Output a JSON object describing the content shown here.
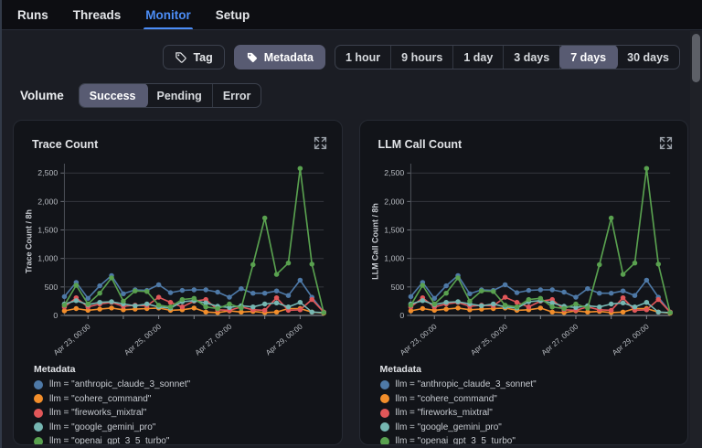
{
  "nav": {
    "tabs": [
      "Runs",
      "Threads",
      "Monitor",
      "Setup"
    ],
    "active_tab": "Monitor"
  },
  "filters": {
    "tag_label": "Tag",
    "metadata_label": "Metadata",
    "selected_filter": "Metadata",
    "time_ranges": [
      "1 hour",
      "9 hours",
      "1 day",
      "3 days",
      "7 days",
      "30 days"
    ],
    "selected_range": "7 days"
  },
  "volume": {
    "label": "Volume",
    "options": [
      "Success",
      "Pending",
      "Error"
    ],
    "selected": "Success"
  },
  "panels": [
    {
      "title": "Trace Count"
    },
    {
      "title": "LLM Call Count"
    }
  ],
  "legend": {
    "title": "Metadata",
    "items": [
      {
        "label": "llm = \"anthropic_claude_3_sonnet\"",
        "color": "#4e79a7"
      },
      {
        "label": "llm = \"cohere_command\"",
        "color": "#f28e2b"
      },
      {
        "label": "llm = \"fireworks_mixtral\"",
        "color": "#e15759"
      },
      {
        "label": "llm = \"google_gemini_pro\"",
        "color": "#76b7b2"
      },
      {
        "label": "llm = \"openai_gpt_3_5_turbo\"",
        "color": "#59a14f"
      }
    ]
  },
  "colors": {
    "accent_blue": "#4c8df6",
    "selected_control": "#585b72",
    "panel_bg": "#121419",
    "page_bg": "#1b1d24"
  },
  "chart_data": [
    {
      "type": "line",
      "title": "Trace Count",
      "ylabel": "Trace Count / 8h",
      "xlabel": "",
      "ylim": [
        0,
        2600
      ],
      "yticks": [
        0,
        500,
        1000,
        1500,
        2000,
        2500
      ],
      "grid": true,
      "legend_position": "bottom",
      "bucket": "8h",
      "xtick_labels": [
        "Apr 23, 00:00",
        "Apr 25, 00:00",
        "Apr 27, 00:00",
        "Apr 29, 00:00"
      ],
      "xtick_indices": [
        2,
        8,
        14,
        20
      ],
      "minor_tick_indices": [
        5,
        11,
        17
      ],
      "series": [
        {
          "name": "llm = \"anthropic_claude_3_sonnet\"",
          "color": "#4e79a7",
          "values": [
            330,
            580,
            300,
            520,
            700,
            380,
            450,
            440,
            540,
            400,
            440,
            450,
            450,
            410,
            320,
            470,
            390,
            390,
            430,
            350,
            620,
            320,
            60
          ]
        },
        {
          "name": "llm = \"cohere_command\"",
          "color": "#f28e2b",
          "values": [
            80,
            120,
            90,
            110,
            130,
            100,
            110,
            120,
            130,
            90,
            100,
            130,
            60,
            50,
            80,
            60,
            70,
            50,
            60,
            120,
            120,
            60,
            40
          ]
        },
        {
          "name": "llm = \"fireworks_mixtral\"",
          "color": "#e15759",
          "values": [
            150,
            310,
            150,
            200,
            230,
            160,
            180,
            170,
            320,
            230,
            150,
            250,
            280,
            100,
            90,
            150,
            100,
            90,
            310,
            90,
            100,
            280,
            60
          ]
        },
        {
          "name": "llm = \"google_gemini_pro\"",
          "color": "#76b7b2",
          "values": [
            200,
            260,
            190,
            230,
            240,
            200,
            170,
            200,
            150,
            130,
            240,
            260,
            220,
            160,
            140,
            170,
            150,
            200,
            220,
            150,
            230,
            60,
            50
          ]
        },
        {
          "name": "llm = \"openai_gpt_3_5_turbo\"",
          "color": "#59a14f",
          "values": [
            180,
            530,
            200,
            390,
            660,
            250,
            430,
            420,
            180,
            150,
            280,
            300,
            150,
            120,
            200,
            130,
            890,
            1710,
            720,
            920,
            2580,
            900,
            50
          ]
        }
      ]
    },
    {
      "type": "line",
      "title": "LLM Call Count",
      "ylabel": "LLM Call Count / 8h",
      "xlabel": "",
      "ylim": [
        0,
        2600
      ],
      "yticks": [
        0,
        500,
        1000,
        1500,
        2000,
        2500
      ],
      "grid": true,
      "legend_position": "bottom",
      "bucket": "8h",
      "xtick_labels": [
        "Apr 23, 00:00",
        "Apr 25, 00:00",
        "Apr 27, 00:00",
        "Apr 29, 00:00"
      ],
      "xtick_indices": [
        2,
        8,
        14,
        20
      ],
      "minor_tick_indices": [
        5,
        11,
        17
      ],
      "series": [
        {
          "name": "llm = \"anthropic_claude_3_sonnet\"",
          "color": "#4e79a7",
          "values": [
            330,
            580,
            300,
            520,
            700,
            380,
            450,
            440,
            540,
            400,
            440,
            450,
            450,
            410,
            320,
            470,
            390,
            390,
            430,
            350,
            620,
            320,
            60
          ]
        },
        {
          "name": "llm = \"cohere_command\"",
          "color": "#f28e2b",
          "values": [
            80,
            120,
            90,
            110,
            130,
            100,
            110,
            120,
            130,
            90,
            100,
            130,
            60,
            50,
            80,
            60,
            70,
            50,
            60,
            120,
            120,
            60,
            40
          ]
        },
        {
          "name": "llm = \"fireworks_mixtral\"",
          "color": "#e15759",
          "values": [
            150,
            310,
            150,
            200,
            230,
            160,
            180,
            170,
            320,
            230,
            150,
            250,
            280,
            100,
            90,
            150,
            100,
            90,
            310,
            90,
            100,
            280,
            60
          ]
        },
        {
          "name": "llm = \"google_gemini_pro\"",
          "color": "#76b7b2",
          "values": [
            200,
            260,
            190,
            230,
            240,
            200,
            170,
            200,
            150,
            130,
            240,
            260,
            220,
            160,
            140,
            170,
            150,
            200,
            220,
            150,
            230,
            60,
            50
          ]
        },
        {
          "name": "llm = \"openai_gpt_3_5_turbo\"",
          "color": "#59a14f",
          "values": [
            180,
            530,
            200,
            390,
            660,
            250,
            430,
            420,
            180,
            150,
            280,
            300,
            150,
            120,
            200,
            130,
            890,
            1710,
            720,
            920,
            2580,
            900,
            50
          ]
        }
      ]
    }
  ]
}
